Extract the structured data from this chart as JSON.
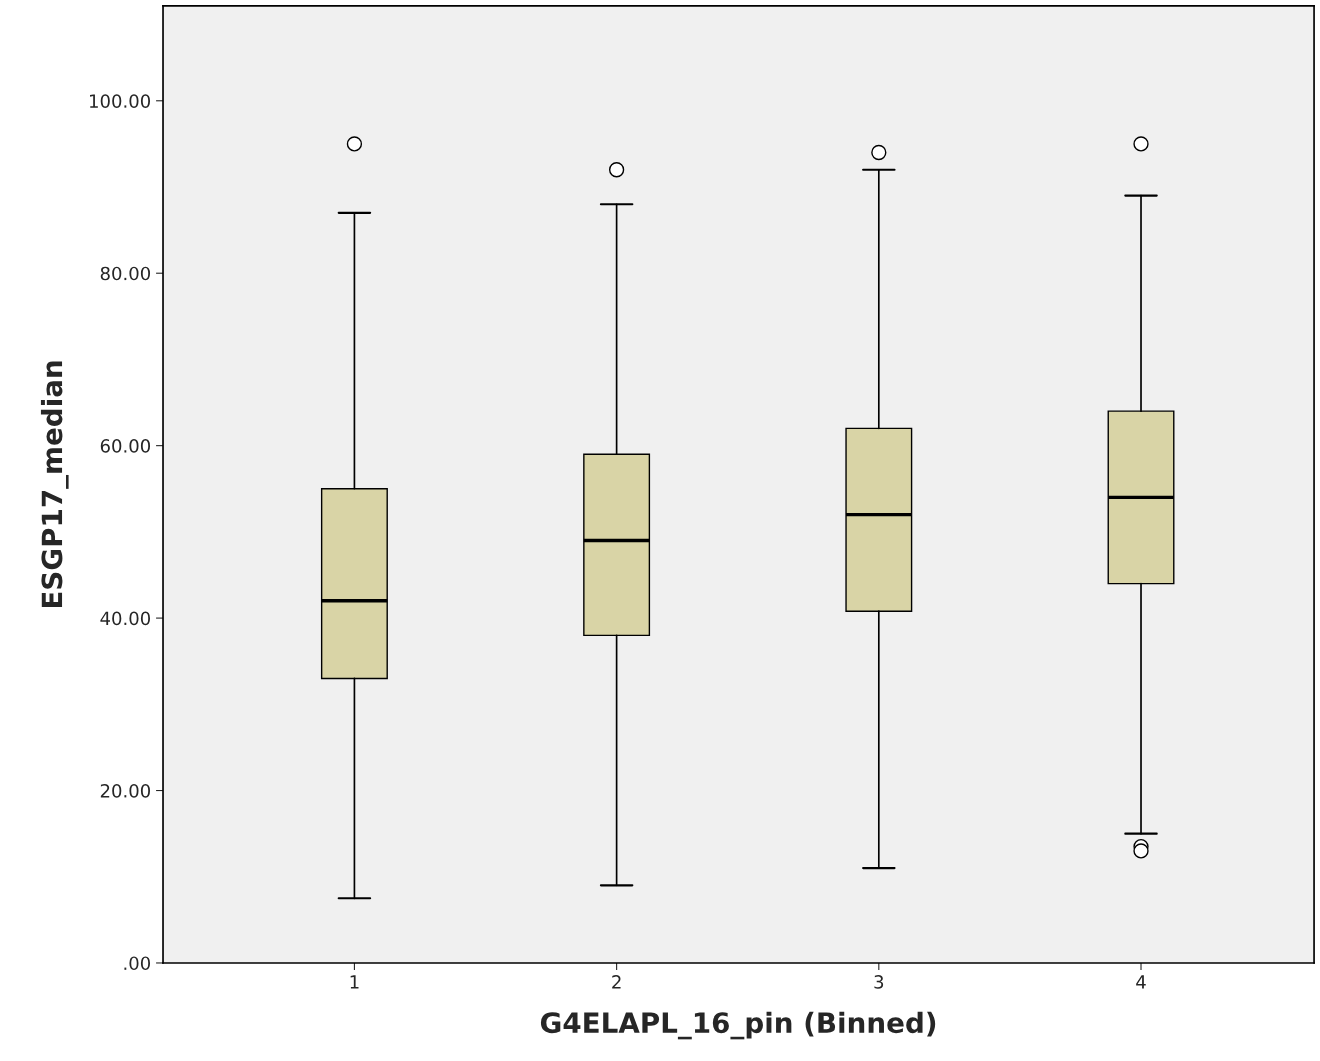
{
  "chart_data": {
    "type": "box",
    "xlabel": "G4ELAPL_16_pin (Binned)",
    "ylabel": "ESGP17_median",
    "categories": [
      "1",
      "2",
      "3",
      "4"
    ],
    "boxes": [
      {
        "low": 7.5,
        "q1": 33,
        "median": 42,
        "q3": 55,
        "high": 87,
        "outliers": [
          95
        ]
      },
      {
        "low": 9,
        "q1": 38,
        "median": 49,
        "q3": 59,
        "high": 88,
        "outliers": [
          92
        ]
      },
      {
        "low": 11,
        "q1": 40.8,
        "median": 52,
        "q3": 62,
        "high": 92,
        "outliers": [
          94
        ]
      },
      {
        "low": 15,
        "q1": 44,
        "median": 54,
        "q3": 64,
        "high": 89,
        "outliers": [
          95,
          13.5,
          13
        ]
      }
    ],
    "color": "#d9d4a6",
    "ylim": [
      0,
      111
    ],
    "yticks": [
      {
        "value": 0,
        "label": ".00"
      },
      {
        "value": 20,
        "label": "20.00"
      },
      {
        "value": 40,
        "label": "40.00"
      },
      {
        "value": 60,
        "label": "60.00"
      },
      {
        "value": 80,
        "label": "80.00"
      },
      {
        "value": 100,
        "label": "100.00"
      }
    ],
    "grid": false,
    "legend": false
  }
}
